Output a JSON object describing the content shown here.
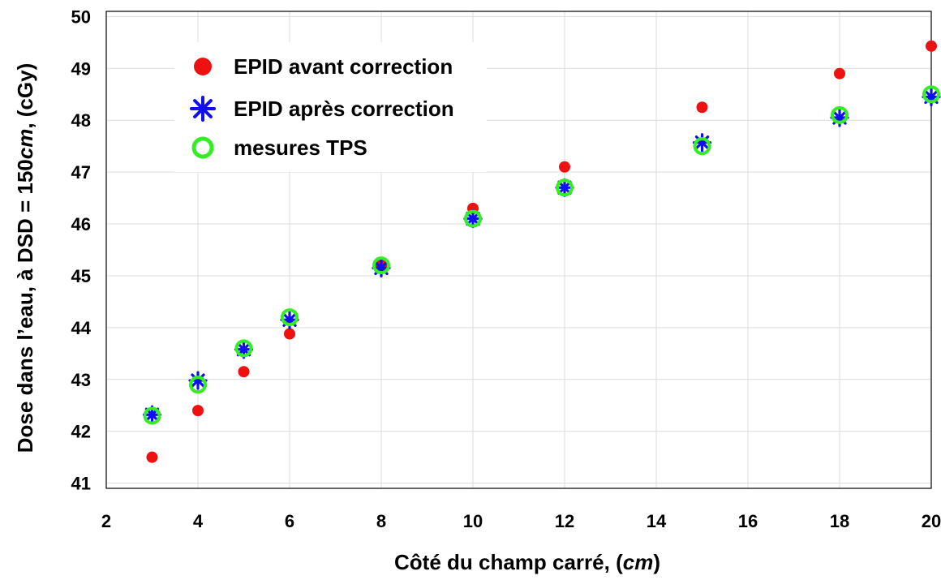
{
  "chart_data": {
    "type": "scatter",
    "xlabel": "Côté du champ carré, (cm)",
    "ylabel": "Dose dans l’eau, à DSD = 150cm, (cGy)",
    "xlim": [
      2,
      20
    ],
    "ylim": [
      40.9,
      50.1
    ],
    "xticks": [
      2,
      4,
      6,
      8,
      10,
      12,
      14,
      16,
      18,
      20
    ],
    "yticks": [
      41,
      42,
      43,
      44,
      45,
      46,
      47,
      48,
      49,
      50
    ],
    "grid": true,
    "legend_position": "top-left",
    "series": [
      {
        "name": "EPID avant correction",
        "marker": "filled-circle",
        "color": "#ee1111",
        "points": [
          [
            3,
            41.5
          ],
          [
            4,
            42.4
          ],
          [
            5,
            43.15
          ],
          [
            6,
            43.88
          ],
          [
            8,
            45.2
          ],
          [
            10,
            46.3
          ],
          [
            12,
            47.1
          ],
          [
            15,
            48.25
          ],
          [
            18,
            48.9
          ],
          [
            20,
            49.43
          ]
        ]
      },
      {
        "name": "EPID après correction",
        "marker": "asterisk",
        "color": "#1010ee",
        "points": [
          [
            3,
            42.32
          ],
          [
            4,
            42.98
          ],
          [
            5,
            43.58
          ],
          [
            6,
            44.15
          ],
          [
            8,
            45.15
          ],
          [
            10,
            46.1
          ],
          [
            12,
            46.7
          ],
          [
            15,
            47.57
          ],
          [
            18,
            48.05
          ],
          [
            20,
            48.45
          ]
        ]
      },
      {
        "name": "mesures TPS",
        "marker": "open-circle",
        "color": "#33ee22",
        "points": [
          [
            3,
            42.3
          ],
          [
            4,
            42.9
          ],
          [
            5,
            43.6
          ],
          [
            6,
            44.2
          ],
          [
            8,
            45.2
          ],
          [
            10,
            46.1
          ],
          [
            12,
            46.7
          ],
          [
            15,
            47.5
          ],
          [
            18,
            48.1
          ],
          [
            20,
            48.5
          ]
        ]
      }
    ]
  }
}
